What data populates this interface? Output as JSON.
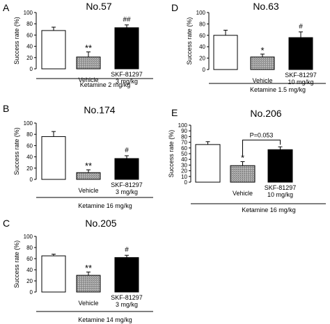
{
  "chart_data": [
    {
      "type": "bar",
      "panel_letter": "A",
      "title": "No.57",
      "ylabel": "Success rate (%)",
      "ylim": [
        0,
        100
      ],
      "yticks": [
        "0",
        "20",
        "40",
        "60",
        "80",
        "100"
      ],
      "categories": [
        "",
        "Vehicle",
        "SKF-81297\n3 mg/kg"
      ],
      "values": [
        68,
        21,
        73
      ],
      "errors": [
        6,
        9,
        5
      ],
      "bar_fills": [
        "#ffffff",
        "#9a9a9a",
        "#000000"
      ],
      "significance": [
        "",
        "**",
        "##"
      ],
      "treatment_label": "Ketamine 2 mg/kg",
      "comparison_label": ""
    },
    {
      "type": "bar",
      "panel_letter": "D",
      "title": "No.63",
      "ylabel": "Success rate (%)",
      "ylim": [
        0,
        100
      ],
      "yticks": [
        "0",
        "20",
        "40",
        "60",
        "80",
        "100"
      ],
      "categories": [
        "",
        "Vehicle",
        "SKF-81297\n10 mg/kg"
      ],
      "values": [
        60,
        22,
        56
      ],
      "errors": [
        9,
        5,
        10
      ],
      "bar_fills": [
        "#ffffff",
        "#9a9a9a",
        "#000000"
      ],
      "significance": [
        "",
        "*",
        "#"
      ],
      "treatment_label": "Ketamine 1.5 mg/kg",
      "comparison_label": ""
    },
    {
      "type": "bar",
      "panel_letter": "B",
      "title": "No.174",
      "ylabel": "Success rate (%)",
      "ylim": [
        0,
        100
      ],
      "yticks": [
        "0",
        "20",
        "40",
        "60",
        "80",
        "100"
      ],
      "categories": [
        "",
        "Vehicle",
        "SKF-81297\n3 mg/kg"
      ],
      "values": [
        76,
        12,
        37
      ],
      "errors": [
        9,
        5,
        5
      ],
      "bar_fills": [
        "#ffffff",
        "#9a9a9a",
        "#000000"
      ],
      "significance": [
        "",
        "**",
        "#"
      ],
      "treatment_label": "Ketamine 16 mg/kg",
      "comparison_label": ""
    },
    {
      "type": "bar",
      "panel_letter": "E",
      "title": "No.206",
      "ylabel": "Success rate (%)",
      "ylim": [
        0,
        100
      ],
      "yticks": [
        "0",
        "10",
        "20",
        "30",
        "40",
        "50",
        "60",
        "70",
        "80",
        "90",
        "100"
      ],
      "categories": [
        "",
        "Vehicle",
        "SKF-81297\n10 mg/kg"
      ],
      "values": [
        66,
        29,
        57
      ],
      "errors": [
        5,
        7,
        5
      ],
      "bar_fills": [
        "#ffffff",
        "#9a9a9a",
        "#000000"
      ],
      "significance": [
        "",
        "*",
        ""
      ],
      "treatment_label": "Ketamine 16 mg/kg",
      "comparison_label": "P=0.053"
    },
    {
      "type": "bar",
      "panel_letter": "C",
      "title": "No.205",
      "ylabel": "Success rate (%)",
      "ylim": [
        0,
        100
      ],
      "yticks": [
        "0",
        "20",
        "40",
        "60",
        "80",
        "100"
      ],
      "categories": [
        "",
        "Vehicle",
        "SKF-81297\n3 mg/kg"
      ],
      "values": [
        65,
        30,
        62
      ],
      "errors": [
        3,
        6,
        4
      ],
      "bar_fills": [
        "#ffffff",
        "#9a9a9a",
        "#000000"
      ],
      "significance": [
        "",
        "**",
        "#"
      ],
      "treatment_label": "Ketamine 14 mg/kg",
      "comparison_label": ""
    }
  ]
}
